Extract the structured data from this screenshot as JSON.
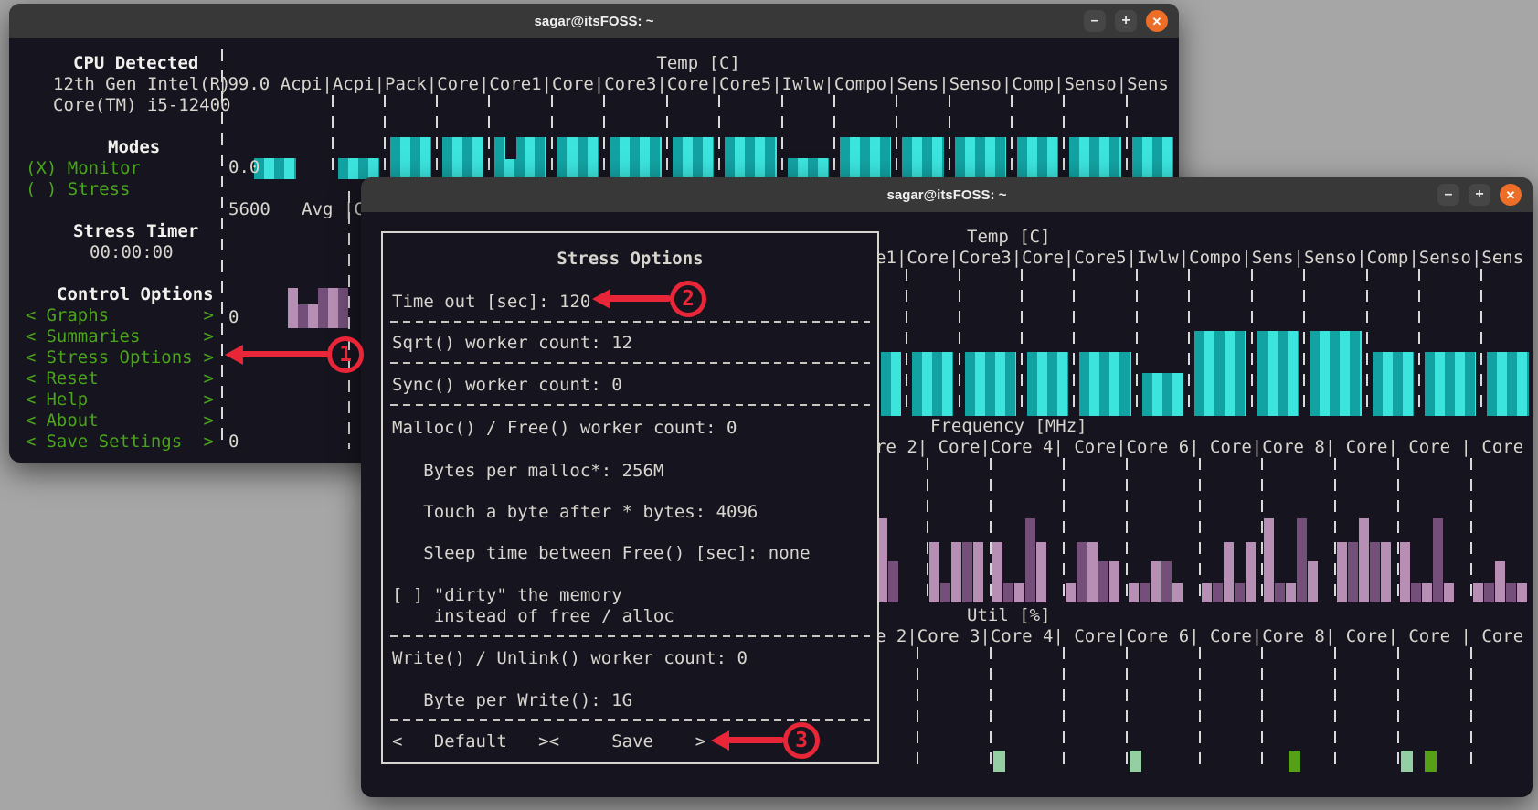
{
  "scene": {
    "background": "#a6a6a6"
  },
  "colors": {
    "terminal_bg": "#16141e",
    "titlebar_bg": "#383838",
    "text": "#d8d5ce",
    "heading": "#f2f1ee",
    "green": "#4aa41c",
    "teal_bright": "#3ce4de",
    "teal_dark": "#13a2a2",
    "purple_light": "#b88fb4",
    "purple_dark": "#734f79",
    "util_green_light": "#93cfa2",
    "util_green_dark": "#55a017",
    "close_button_orange": "#ec6e27",
    "annotation_red": "#e82638",
    "dashed_line": "#d9d9d9"
  },
  "back_window": {
    "title": "sagar@itsFOSS: ~",
    "controls": {
      "minimize": "–",
      "maximize": "+",
      "close": "✕"
    },
    "sidebar": {
      "cpu_heading": "CPU Detected",
      "cpu_model_line1": "12th Gen Intel(R)",
      "cpu_model_line2": "Core(TM) i5-12400",
      "modes_heading": "Modes",
      "mode_monitor": "(X) Monitor",
      "mode_stress": "( ) Stress",
      "timer_heading": "Stress Timer",
      "timer_value": "00:00:00",
      "controls_heading": "Control Options",
      "bracket_left": "<",
      "bracket_right": ">",
      "menu_items": [
        "Graphs",
        "Summaries",
        "Stress Options",
        "Reset",
        "Help",
        "About",
        "Save Settings"
      ]
    },
    "temp_min_label": "0.0",
    "freq_header_visible": "5600   Avg |C",
    "freq_zero_label": "0",
    "freq_bottom_zero_label": "0"
  },
  "front_window": {
    "title": "sagar@itsFOSS: ~",
    "controls": {
      "minimize": "–",
      "maximize": "+",
      "close": "✕"
    },
    "dialog": {
      "title": "Stress Options",
      "lines": [
        {
          "text": "Time out [sec]: 120",
          "indent": 0,
          "sep": true
        },
        {
          "text": "Sqrt() worker count: 12",
          "indent": 0,
          "sep": true
        },
        {
          "text": "Sync() worker count: 0",
          "indent": 0,
          "sep": true
        },
        {
          "text": "Malloc() / Free() worker count: 0",
          "indent": 0,
          "sep": false
        },
        {
          "text": "Bytes per malloc*: 256M",
          "indent": 3,
          "sep": false
        },
        {
          "text": "Touch a byte after * bytes: 4096",
          "indent": 3,
          "sep": false
        },
        {
          "text": "Sleep time between Free() [sec]: none",
          "indent": 3,
          "sep": false
        },
        {
          "text": "[ ] \"dirty\" the memory",
          "indent": 0,
          "sep": false
        },
        {
          "text": "instead of free / alloc",
          "indent": 4,
          "sep": true
        },
        {
          "text": "Write() / Unlink() worker count: 0",
          "indent": 0,
          "sep": false
        },
        {
          "text": "Byte per Write(): 1G",
          "indent": 3,
          "sep": true
        }
      ],
      "buttons": [
        "<   Default   >",
        "<     Save    >"
      ]
    }
  },
  "chart_data": [
    {
      "id": "back_temp",
      "type": "bar",
      "title": "Temp [C]",
      "ylabel": "Temp [C]",
      "ymax_label": "99.0",
      "ymin_label": "0.0",
      "ylim": [
        0,
        99
      ],
      "categories": [
        "Acpi",
        "Acpi",
        "Pack",
        "Core",
        "Core1",
        "Core",
        "Core3",
        "Core",
        "Core5",
        "Iwlw",
        "Compo",
        "Sens",
        "Senso",
        "Comp",
        "Senso",
        "Sens"
      ],
      "values": [
        25,
        25,
        50,
        50,
        50,
        50,
        50,
        50,
        50,
        25,
        50,
        50,
        50,
        50,
        50,
        50
      ],
      "notch_column": 4
    },
    {
      "id": "back_freq",
      "type": "bar",
      "title": "Frequency [MHz]",
      "header_visible": "5600   Avg |C",
      "ymax_label": "5600",
      "ymin_label": "0",
      "ylim": [
        0,
        5600
      ],
      "stripe_values": [
        1900,
        1150,
        1150,
        1900,
        1900,
        1900
      ]
    },
    {
      "id": "front_temp",
      "type": "bar",
      "title": "Temp [C]",
      "ylim": [
        0,
        99
      ],
      "categories_visible": [
        "e1",
        "Core",
        "Core3",
        "Core",
        "Core5",
        "Iwlw",
        "Compo",
        "Sens",
        "Senso",
        "Comp",
        "Senso",
        "Sens"
      ],
      "values": [
        43,
        43,
        43,
        43,
        43,
        29,
        57,
        57,
        57,
        43,
        43,
        43
      ]
    },
    {
      "id": "front_freq",
      "type": "bar",
      "title": "Frequency [MHz]",
      "ylim": [
        0,
        5600
      ],
      "categories_visible": [
        "re 2",
        " Core",
        "Core 4",
        " Core",
        "Core 6",
        " Core",
        "Core 8",
        " Core",
        " Core ",
        " Core"
      ],
      "series_stripes": [
        [
          3250,
          1600
        ],
        [
          2350,
          750,
          2350,
          2350,
          2350
        ],
        [
          2350,
          750,
          750,
          3250,
          2350
        ],
        [
          750,
          2350,
          2350,
          1600,
          1600
        ],
        [
          750,
          750,
          1600,
          1600,
          750
        ],
        [
          750,
          750,
          2350,
          750,
          2350
        ],
        [
          3250,
          750,
          750,
          3250,
          1600
        ],
        [
          2350,
          2350,
          3250,
          2350,
          2350
        ],
        [
          2350,
          750,
          750,
          3250,
          750
        ],
        [
          750,
          750,
          1600,
          750,
          750
        ]
      ]
    },
    {
      "id": "front_util",
      "type": "bar",
      "title": "Util [%]",
      "ylim": [
        0,
        100
      ],
      "categories_visible": [
        "e 2",
        "Core 3",
        "Core 4",
        " Core",
        "Core 6",
        " Core",
        "Core 8",
        " Core",
        " Core ",
        " Core"
      ],
      "bars": [
        {
          "col": 2,
          "pos": 0,
          "value": 17,
          "shade": "light"
        },
        {
          "col": 4,
          "pos": 0,
          "value": 17,
          "shade": "light"
        },
        {
          "col": 6,
          "pos": 2,
          "value": 17,
          "shade": "dark"
        },
        {
          "col": 8,
          "pos": 0,
          "value": 17,
          "shade": "light"
        },
        {
          "col": 8,
          "pos": 2,
          "value": 17,
          "shade": "dark"
        }
      ]
    }
  ],
  "annotations": [
    {
      "number": "1"
    },
    {
      "number": "2"
    },
    {
      "number": "3"
    }
  ]
}
